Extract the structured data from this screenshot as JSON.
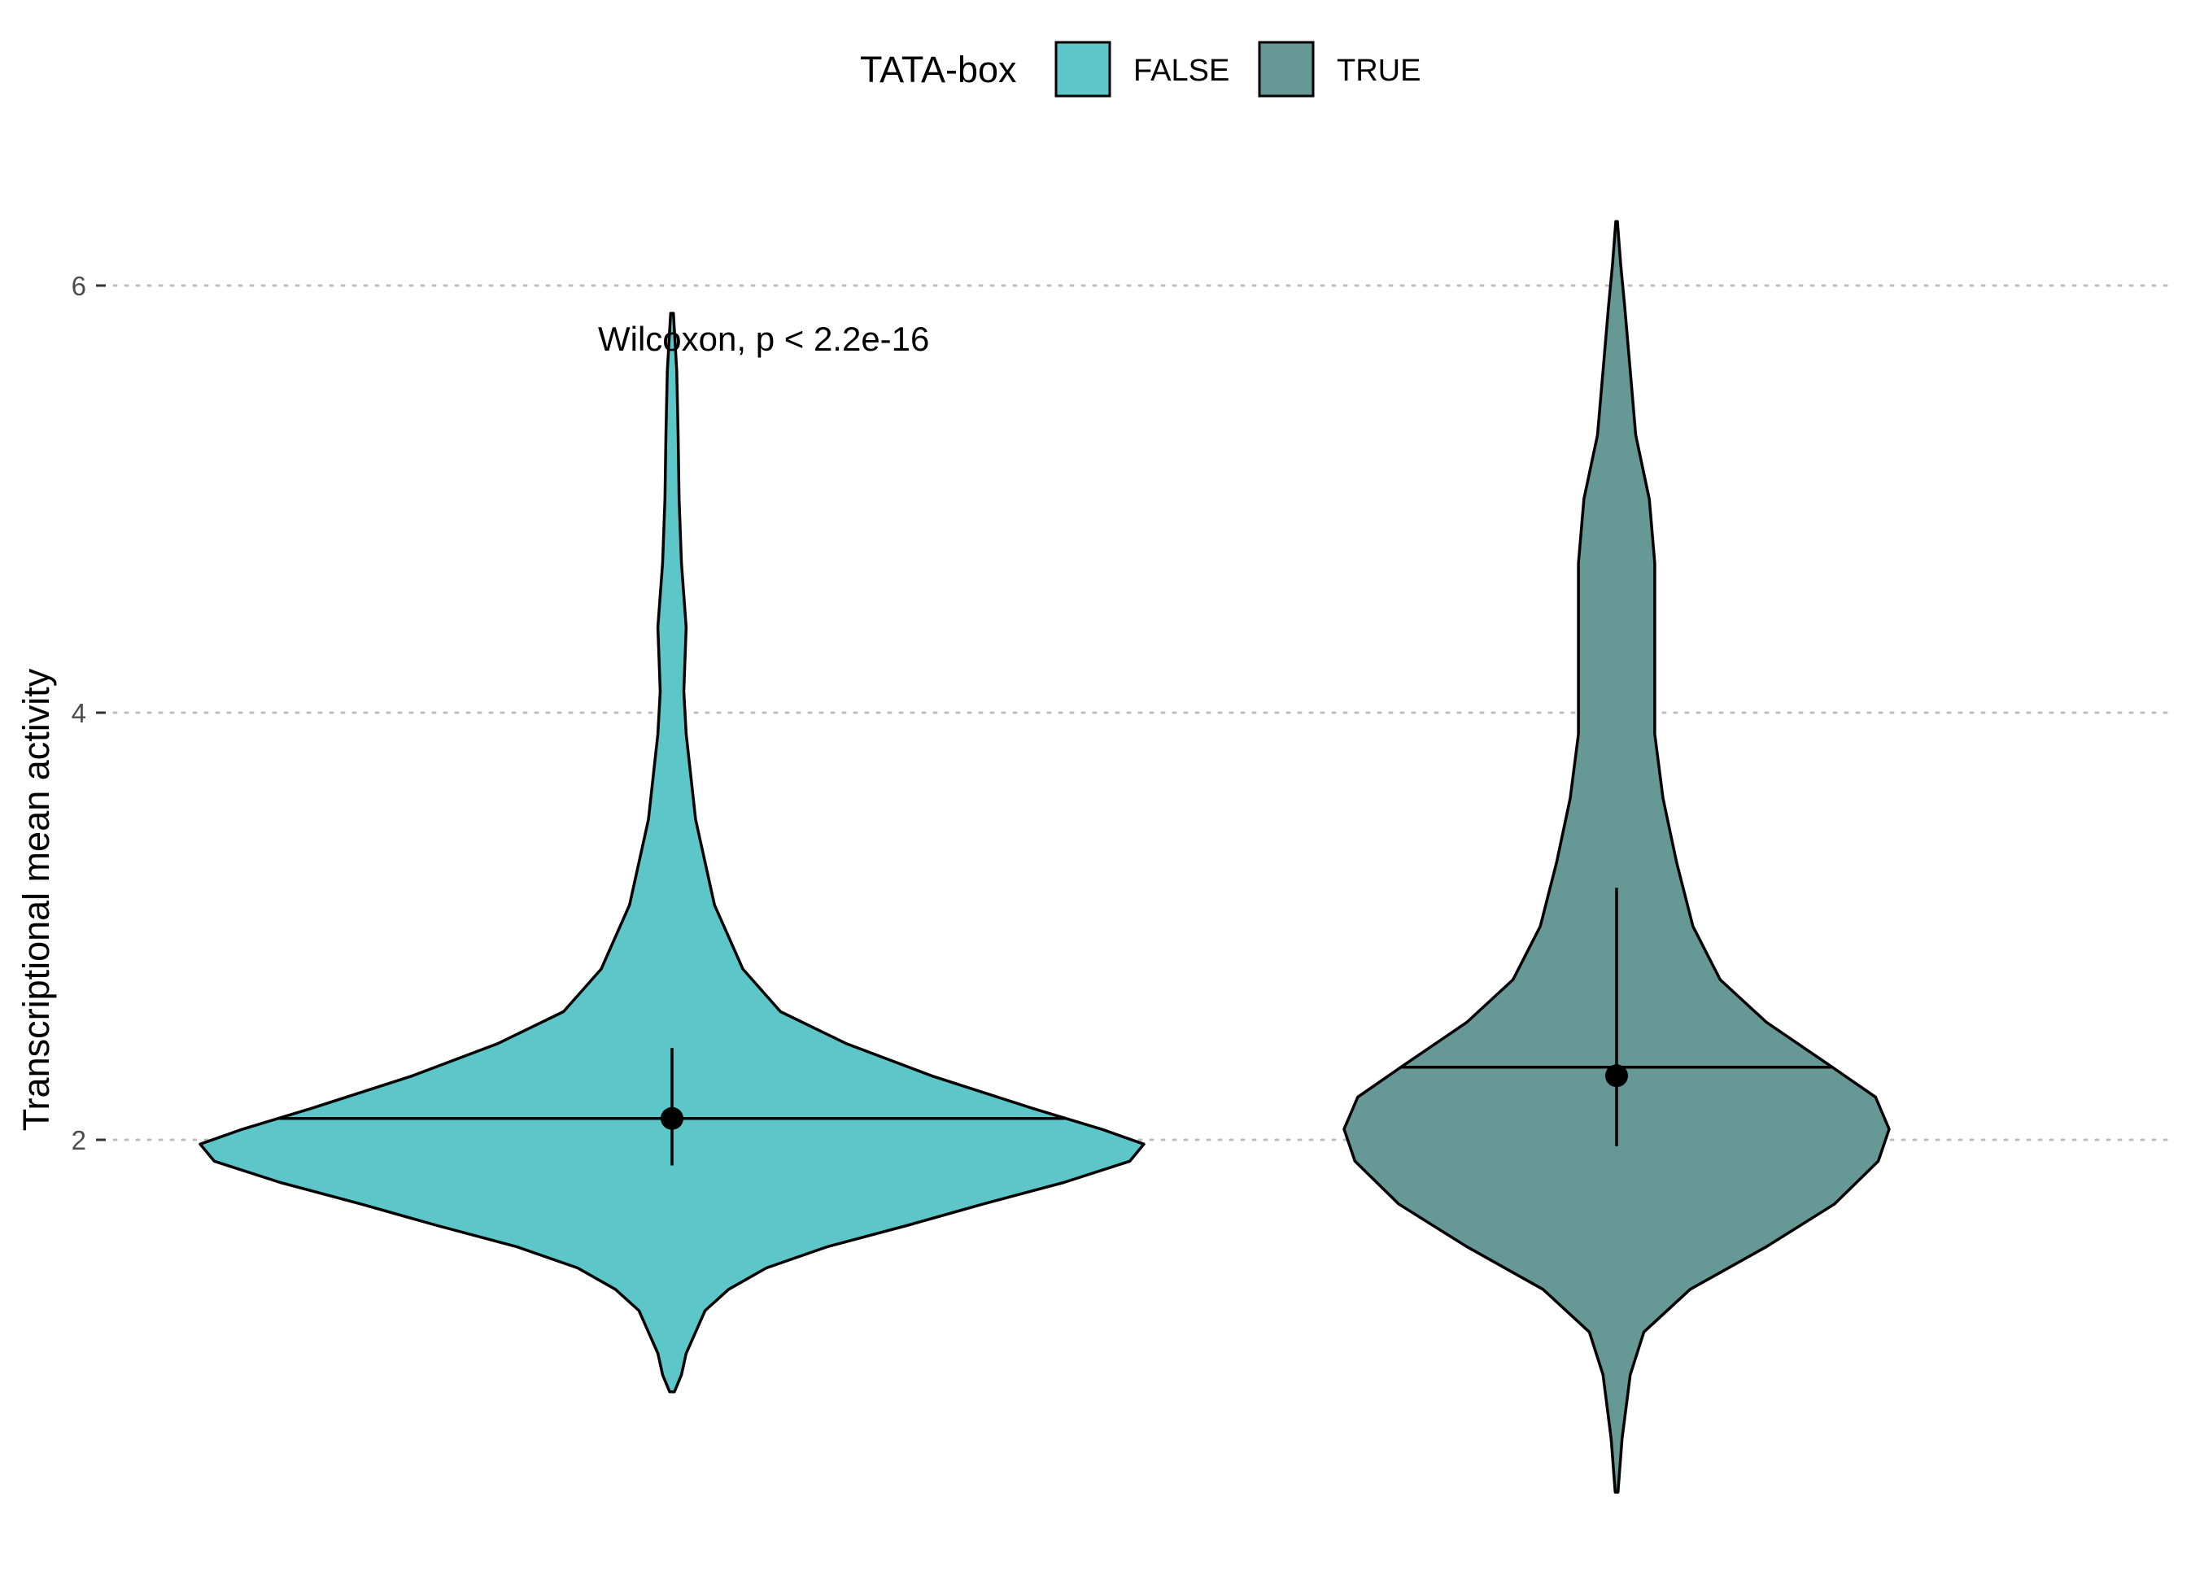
{
  "chart_data": {
    "type": "violin",
    "ylabel": "Transcriptional mean activity",
    "xlabel": "",
    "ylim": [
      0.25,
      6.6
    ],
    "y_ticks": [
      2,
      4,
      6
    ],
    "grid": "horizontal dotted",
    "legend": {
      "title": "TATA-box",
      "placement": "top",
      "entries": [
        {
          "label": "FALSE",
          "color": "#5CC6C8"
        },
        {
          "label": "TRUE",
          "color": "#669896"
        }
      ]
    },
    "annotation": "Wilcoxon, p < 2.2e-16",
    "series": [
      {
        "key": "FALSE",
        "color": "#5CC6C8",
        "min": 0.82,
        "max": 5.87,
        "mean": 2.1,
        "err_low": 1.88,
        "err_high": 2.43,
        "hline": 2.1,
        "density": [
          [
            0.82,
            0.005
          ],
          [
            0.9,
            0.02
          ],
          [
            1.0,
            0.03
          ],
          [
            1.1,
            0.05
          ],
          [
            1.2,
            0.07
          ],
          [
            1.3,
            0.12
          ],
          [
            1.4,
            0.2
          ],
          [
            1.5,
            0.33
          ],
          [
            1.6,
            0.5
          ],
          [
            1.7,
            0.66
          ],
          [
            1.8,
            0.83
          ],
          [
            1.9,
            0.97
          ],
          [
            1.98,
            1.0
          ],
          [
            2.05,
            0.91
          ],
          [
            2.15,
            0.76
          ],
          [
            2.3,
            0.55
          ],
          [
            2.45,
            0.37
          ],
          [
            2.6,
            0.23
          ],
          [
            2.8,
            0.15
          ],
          [
            2.95,
            0.12
          ],
          [
            3.1,
            0.09
          ],
          [
            3.3,
            0.07
          ],
          [
            3.5,
            0.05
          ],
          [
            3.7,
            0.04
          ],
          [
            3.9,
            0.03
          ],
          [
            4.1,
            0.025
          ],
          [
            4.4,
            0.03
          ],
          [
            4.7,
            0.02
          ],
          [
            5.0,
            0.015
          ],
          [
            5.3,
            0.013
          ],
          [
            5.6,
            0.01
          ],
          [
            5.87,
            0.003
          ]
        ]
      },
      {
        "key": "TRUE",
        "color": "#669896",
        "min": 0.35,
        "max": 6.3,
        "mean": 2.3,
        "err_low": 1.97,
        "err_high": 3.18,
        "hline": 2.34,
        "density": [
          [
            0.35,
            0.005
          ],
          [
            0.6,
            0.02
          ],
          [
            0.9,
            0.05
          ],
          [
            1.1,
            0.1
          ],
          [
            1.3,
            0.27
          ],
          [
            1.5,
            0.55
          ],
          [
            1.7,
            0.8
          ],
          [
            1.9,
            0.96
          ],
          [
            2.05,
            1.0
          ],
          [
            2.2,
            0.95
          ],
          [
            2.35,
            0.78
          ],
          [
            2.55,
            0.55
          ],
          [
            2.75,
            0.38
          ],
          [
            3.0,
            0.28
          ],
          [
            3.3,
            0.22
          ],
          [
            3.6,
            0.17
          ],
          [
            3.9,
            0.14
          ],
          [
            4.3,
            0.14
          ],
          [
            4.7,
            0.14
          ],
          [
            5.0,
            0.12
          ],
          [
            5.3,
            0.07
          ],
          [
            5.6,
            0.05
          ],
          [
            5.9,
            0.03
          ],
          [
            6.1,
            0.015
          ],
          [
            6.3,
            0.003
          ]
        ]
      }
    ]
  }
}
